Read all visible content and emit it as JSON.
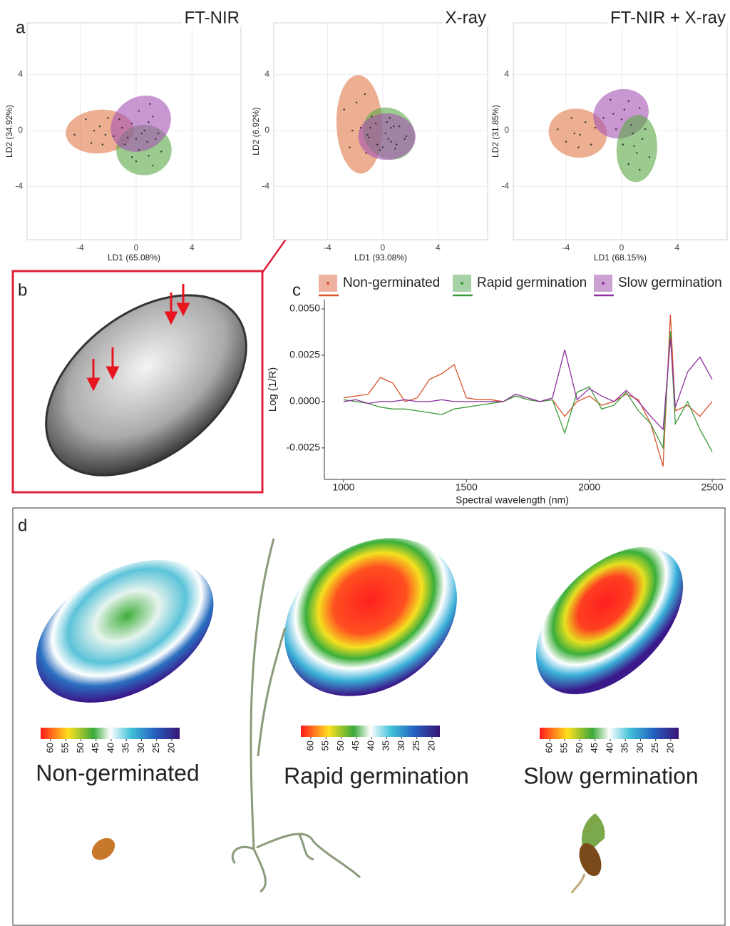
{
  "panel_labels": [
    "a",
    "b",
    "c",
    "d"
  ],
  "chart_data": [
    {
      "type": "scatter",
      "title": "FT-NIR",
      "xlabel": "LD1 (65.08%)",
      "ylabel": "LD2 (34.92%)",
      "xlim": [
        -7.8,
        7.5
      ],
      "ylim": [
        -7.8,
        7.7
      ],
      "xticks": [
        -4,
        0,
        4
      ],
      "yticks": [
        -4,
        0,
        4
      ],
      "grid": true,
      "series": [
        {
          "color": "#e07a4a",
          "x": [
            -4.4,
            -3.6,
            -3.2,
            -2.6,
            -2.4,
            -2.0,
            -1.6,
            -1.0,
            -3.0,
            -2.2
          ],
          "y": [
            -0.3,
            0.8,
            -0.9,
            0.3,
            -1.0,
            0.9,
            -0.4,
            0.2,
            0.0,
            -0.3
          ]
        },
        {
          "color": "#5aa845",
          "x": [
            -0.8,
            0.0,
            0.4,
            0.9,
            1.4,
            1.8,
            0.2,
            0.8,
            -0.3,
            1.2
          ],
          "y": [
            -1.0,
            -2.2,
            -0.2,
            -1.8,
            -0.6,
            -1.5,
            -1.4,
            -0.8,
            -1.9,
            -2.5
          ]
        },
        {
          "color": "#a553b5",
          "x": [
            -1.2,
            -0.6,
            0.2,
            0.6,
            1.2,
            1.6,
            -0.3,
            0.9,
            0.0,
            1.0
          ],
          "y": [
            0.8,
            -0.5,
            1.4,
            0.0,
            1.0,
            -0.2,
            0.5,
            0.6,
            -0.6,
            1.9
          ]
        }
      ]
    },
    {
      "type": "scatter",
      "title": "X-ray",
      "xlabel": "LD1 (93.08%)",
      "ylabel": "LD2 (6.92%)",
      "xlim": [
        -7.9,
        7.6
      ],
      "ylim": [
        -7.8,
        7.7
      ],
      "xticks": [
        -4,
        0,
        4
      ],
      "yticks": [
        -4,
        0,
        4
      ],
      "grid": true,
      "series": [
        {
          "color": "#e07a4a",
          "x": [
            -2.8,
            -2.4,
            -1.9,
            -1.6,
            -1.2,
            -0.8,
            -2.2,
            -1.0,
            -1.3
          ],
          "y": [
            1.5,
            -1.2,
            2.0,
            0.2,
            -1.6,
            1.0,
            0.0,
            -0.5,
            2.6
          ]
        },
        {
          "color": "#5aa845",
          "x": [
            -0.9,
            -0.4,
            0.3,
            0.6,
            1.2,
            1.6,
            0.2,
            0.9,
            0.5
          ],
          "y": [
            0.2,
            -1.0,
            0.6,
            -0.8,
            0.3,
            -0.6,
            -0.2,
            -1.3,
            0.9
          ]
        },
        {
          "color": "#a553b5",
          "x": [
            -1.1,
            -0.5,
            0.0,
            0.6,
            1.0,
            1.7,
            0.4,
            -0.2,
            0.8
          ],
          "y": [
            -0.3,
            0.5,
            -1.2,
            0.2,
            -1.0,
            -0.4,
            -0.6,
            -1.4,
            0.3
          ]
        }
      ]
    },
    {
      "type": "scatter",
      "title": "FT-NIR + X-ray",
      "xlabel": "LD1 (68.15%)",
      "ylabel": "LD2 (31.85%)",
      "xlim": [
        -7.8,
        7.6
      ],
      "ylim": [
        -7.8,
        7.7
      ],
      "xticks": [
        -4,
        0,
        4
      ],
      "yticks": [
        -4,
        0,
        4
      ],
      "grid": true,
      "series": [
        {
          "color": "#e07a4a",
          "x": [
            -4.6,
            -4.0,
            -3.6,
            -3.0,
            -2.6,
            -2.2,
            -3.4,
            -1.9,
            -3.1
          ],
          "y": [
            0.1,
            -0.8,
            0.9,
            -0.3,
            0.6,
            -1.0,
            -0.2,
            0.2,
            -1.2
          ]
        },
        {
          "color": "#a553b5",
          "x": [
            -1.3,
            -0.8,
            -0.4,
            0.2,
            0.7,
            1.3,
            0.0,
            0.5,
            -0.6
          ],
          "y": [
            0.9,
            2.2,
            0.1,
            1.5,
            0.4,
            1.6,
            0.8,
            2.1,
            1.2
          ]
        },
        {
          "color": "#5aa845",
          "x": [
            0.1,
            0.5,
            0.8,
            1.1,
            1.5,
            2.0,
            1.3,
            0.9,
            1.7
          ],
          "y": [
            -1.0,
            -2.4,
            -0.2,
            -1.6,
            -0.6,
            -1.9,
            -2.8,
            -1.1,
            0.1
          ]
        }
      ]
    },
    {
      "type": "line",
      "xlabel": "Spectral wavelength (nm)",
      "ylabel": "Log (1/R)",
      "xlim": [
        922,
        2555
      ],
      "ylim": [
        -0.0042,
        0.0055
      ],
      "xticks": [
        1000,
        1500,
        2000,
        2500
      ],
      "yticks": [
        {
          "value": -0.0025,
          "label": "-0.0025"
        },
        {
          "value": 0,
          "label": "0.0000"
        },
        {
          "value": 0.0025,
          "label": "0.0025"
        },
        {
          "value": 0.005,
          "label": "0.0050"
        }
      ],
      "x": [
        1000,
        1050,
        1100,
        1150,
        1200,
        1250,
        1300,
        1350,
        1400,
        1450,
        1500,
        1550,
        1600,
        1650,
        1700,
        1750,
        1800,
        1850,
        1900,
        1950,
        2000,
        2050,
        2100,
        2150,
        2200,
        2250,
        2300,
        2330,
        2350,
        2400,
        2450,
        2500
      ],
      "series": [
        {
          "name": "Non-germinated",
          "color": "#d9532b",
          "values": [
            0.0002,
            0.0003,
            0.0004,
            0.0013,
            0.001,
            0.0,
            0.0002,
            0.0012,
            0.0015,
            0.002,
            0.0002,
            0.0001,
            0.0001,
            0.0,
            0.0003,
            0.0001,
            0.0,
            0.0001,
            -0.0008,
            0.0,
            0.0003,
            -0.0002,
            0.0,
            0.0004,
            0.0001,
            -0.0012,
            -0.0035,
            0.0047,
            -0.0005,
            -0.0002,
            -0.0008,
            0.0
          ]
        },
        {
          "name": "Rapid germination",
          "color": "#3c9a3a",
          "values": [
            0.0001,
            0.0,
            -0.0001,
            -0.0003,
            -0.0004,
            -0.0004,
            -0.0005,
            -0.0006,
            -0.0007,
            -0.0004,
            -0.0003,
            -0.0002,
            -0.0001,
            0.0,
            0.0003,
            0.0001,
            0.0,
            0.0001,
            -0.0017,
            0.0005,
            0.0008,
            -0.0004,
            -0.0002,
            0.0005,
            -0.0005,
            -0.0012,
            -0.0025,
            0.0038,
            -0.0012,
            0.0,
            -0.0015,
            -0.0027
          ]
        },
        {
          "name": "Slow germination",
          "color": "#8e2fa0",
          "values": [
            0.0,
            0.0001,
            -0.0001,
            0.0,
            0.0,
            0.0001,
            0.0,
            0.0,
            0.0001,
            0.0,
            0.0,
            0.0,
            0.0,
            0.0,
            0.0004,
            0.0002,
            0.0,
            0.0002,
            0.0028,
            0.0001,
            0.0007,
            0.0003,
            0.0,
            0.0006,
            0.0,
            -0.0008,
            -0.0015,
            0.0034,
            -0.0003,
            0.0016,
            0.0024,
            0.0012
          ]
        }
      ]
    }
  ],
  "panel_d": {
    "labels": [
      "Non-germinated",
      "Rapid germination",
      "Slow germination"
    ],
    "colorbar_lim": [
      63.3,
      17.4
    ],
    "colorbar_ticks": [
      60,
      55,
      50,
      45,
      40,
      35,
      30,
      25,
      20
    ]
  }
}
